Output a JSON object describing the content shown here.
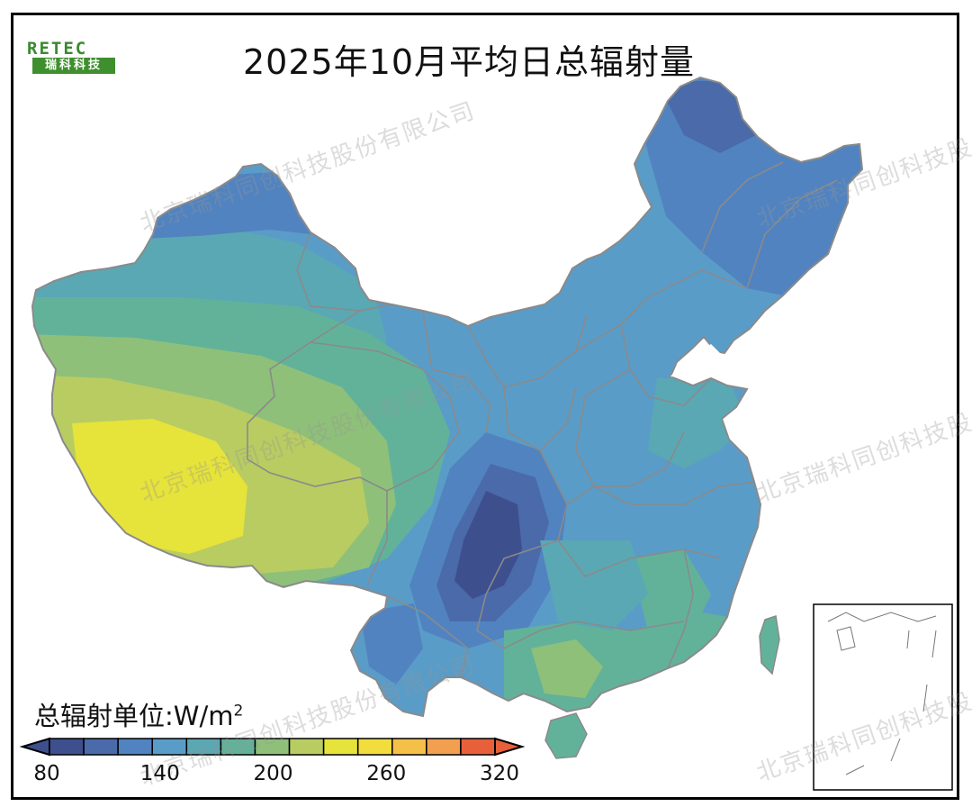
{
  "title": "2025年10月平均日总辐射量",
  "logo": {
    "top_text": "RETEC",
    "bottom_text": "瑞科科技"
  },
  "watermark_text": "北京瑞科同创科技股份有限公司",
  "legend": {
    "unit_prefix": "总辐射单位:W/m",
    "unit_sup": "2",
    "tick_labels": [
      "80",
      "140",
      "200",
      "260",
      "320"
    ],
    "tick_values": [
      80,
      140,
      200,
      260,
      320
    ],
    "min": 80,
    "max": 320,
    "step": 20,
    "colors": [
      "#3e4f8e",
      "#4a6aaa",
      "#5183c0",
      "#5a9cc8",
      "#5aa8b4",
      "#62b29a",
      "#8ec07a",
      "#b8cc62",
      "#e6e33a",
      "#f3dd3c",
      "#f4c048",
      "#f2a050",
      "#e8603a"
    ]
  },
  "colors": {
    "boundary": "#8a8a8a",
    "frame": "#000000"
  }
}
